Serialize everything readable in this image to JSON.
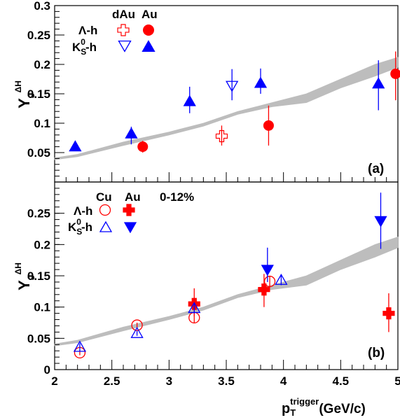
{
  "chart_data": [
    {
      "type": "scatter",
      "panel_label": "(a)",
      "xlim": [
        2,
        5
      ],
      "ylim": [
        0,
        0.3
      ],
      "yticks": [
        0,
        0.05,
        0.1,
        0.15,
        0.2,
        0.25,
        0.3
      ],
      "ytick_labels": [
        "",
        "0.05",
        "0.1",
        "0.15",
        "0.2",
        "0.25",
        "0.3"
      ],
      "ylabel": {
        "main": "Y",
        "sub": "J",
        "sup": "ΔΗ"
      },
      "legend": {
        "col_headers": [
          "dAu",
          "Au"
        ],
        "rows": [
          "Λ-h",
          "K_S^0-h"
        ],
        "k0_main": "K",
        "k0_sub": "S",
        "k0_sup": "0",
        "k0_rest": "-h"
      },
      "band": {
        "x": [
          2.0,
          2.2,
          2.6,
          3.0,
          3.3,
          3.6,
          3.9,
          4.2,
          4.5,
          4.8,
          5.0
        ],
        "lower": [
          0.038,
          0.043,
          0.062,
          0.08,
          0.095,
          0.115,
          0.128,
          0.135,
          0.16,
          0.18,
          0.195
        ],
        "upper": [
          0.041,
          0.047,
          0.068,
          0.085,
          0.1,
          0.12,
          0.135,
          0.15,
          0.175,
          0.2,
          0.212
        ]
      },
      "series": [
        {
          "name": "Λ-h",
          "system": "dAu",
          "marker": "cross-open",
          "color": "#ff0000",
          "x": [
            3.46
          ],
          "y": [
            0.078
          ],
          "yerr_low": [
            0.016
          ],
          "yerr_high": [
            0.018
          ]
        },
        {
          "name": "Λ-h",
          "system": "Au",
          "marker": "circle-filled",
          "color": "#ff0000",
          "x": [
            2.77,
            3.87,
            4.98
          ],
          "y": [
            0.06,
            0.096,
            0.184
          ],
          "yerr_low": [
            0.01,
            0.034,
            0.045
          ],
          "yerr_high": [
            0.01,
            0.034,
            0.038
          ]
        },
        {
          "name": "K_S^0-h",
          "system": "dAu",
          "marker": "triangle-down-open",
          "color": "#0000ff",
          "x": [
            3.55
          ],
          "y": [
            0.164
          ],
          "yerr_low": [
            0.025
          ],
          "yerr_high": [
            0.028
          ]
        },
        {
          "name": "K_S^0-h",
          "system": "Au",
          "marker": "triangle-up-filled",
          "color": "#0000ff",
          "x": [
            2.18,
            2.67,
            3.18,
            3.8,
            4.83
          ],
          "y": [
            0.06,
            0.082,
            0.137,
            0.168,
            0.167
          ],
          "yerr_low": [
            0.0,
            0.018,
            0.02,
            0.018,
            0.045
          ],
          "yerr_high": [
            0.0,
            0.012,
            0.025,
            0.025,
            0.04
          ]
        }
      ]
    },
    {
      "type": "scatter",
      "panel_label": "(b)",
      "xlim": [
        2,
        5
      ],
      "ylim": [
        0,
        0.3
      ],
      "yticks": [
        0,
        0.05,
        0.1,
        0.15,
        0.2,
        0.25
      ],
      "ytick_labels": [
        "0",
        "0.05",
        "0.1",
        "0.15",
        "0.2",
        "0.25"
      ],
      "xticks": [
        2,
        2.5,
        3,
        3.5,
        4,
        4.5,
        5
      ],
      "xtick_labels": [
        "2",
        "2.5",
        "3",
        "3.5",
        "4",
        "4.5",
        "5"
      ],
      "ylabel": {
        "main": "Y",
        "sub": "J",
        "sup": "ΔΗ"
      },
      "xlabel": {
        "main": "p",
        "sub": "T",
        "sup": "trigger",
        "rest": "(GeV/c)"
      },
      "legend": {
        "col_headers": [
          "Cu",
          "Au",
          "0-12%"
        ],
        "rows": [
          "Λ-h",
          "K_S^0-h"
        ],
        "k0_main": "K",
        "k0_sub": "S",
        "k0_sup": "0",
        "k0_rest": "-h"
      },
      "band": {
        "x": [
          2.0,
          2.2,
          2.6,
          3.0,
          3.3,
          3.6,
          3.9,
          4.2,
          4.5,
          4.8,
          5.0
        ],
        "lower": [
          0.038,
          0.043,
          0.062,
          0.08,
          0.095,
          0.115,
          0.128,
          0.135,
          0.16,
          0.18,
          0.195
        ],
        "upper": [
          0.041,
          0.047,
          0.068,
          0.085,
          0.1,
          0.12,
          0.135,
          0.15,
          0.175,
          0.2,
          0.212
        ]
      },
      "series": [
        {
          "name": "Λ-h",
          "system": "Cu",
          "marker": "circle-open",
          "color": "#ff0000",
          "x": [
            2.22,
            2.72,
            3.22,
            3.88
          ],
          "y": [
            0.027,
            0.071,
            0.083,
            0.141
          ],
          "yerr_low": [
            0.004,
            0.004,
            0.008,
            0.008
          ],
          "yerr_high": [
            0.004,
            0.004,
            0.008,
            0.008
          ]
        },
        {
          "name": "Λ-h",
          "system": "Au",
          "marker": "cross-filled",
          "color": "#ff0000",
          "x": [
            3.22,
            3.83,
            4.92
          ],
          "y": [
            0.105,
            0.128,
            0.09
          ],
          "yerr_low": [
            0.02,
            0.028,
            0.03
          ],
          "yerr_high": [
            0.025,
            0.025,
            0.032
          ]
        },
        {
          "name": "K_S^0-h",
          "system": "Cu",
          "marker": "triangle-up-open",
          "color": "#0000ff",
          "x": [
            2.22,
            2.72,
            3.22,
            3.98
          ],
          "y": [
            0.036,
            0.058,
            0.098,
            0.143
          ],
          "yerr_low": [
            0.006,
            0.004,
            0.008,
            0.008
          ],
          "yerr_high": [
            0.006,
            0.004,
            0.008,
            0.008
          ]
        },
        {
          "name": "K_S^0-h",
          "system": "Au",
          "marker": "triangle-down-filled",
          "color": "#0000ff",
          "x": [
            3.86,
            4.85
          ],
          "y": [
            0.16,
            0.238
          ],
          "yerr_low": [
            0.02,
            0.045
          ],
          "yerr_high": [
            0.035,
            0.045
          ]
        }
      ]
    }
  ]
}
